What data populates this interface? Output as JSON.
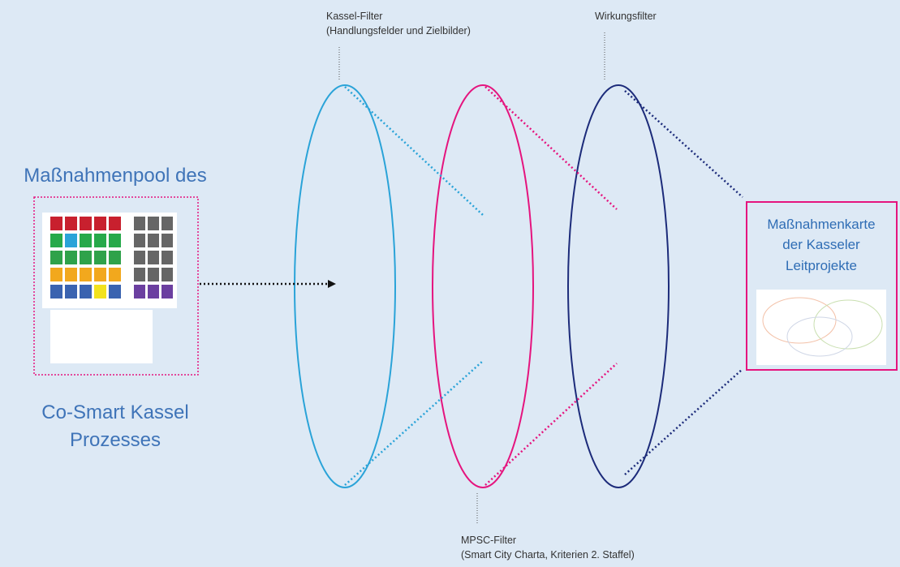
{
  "filters": [
    {
      "label_lines": [
        "Kassel-Filter",
        "(Handlungsfelder und Zielbilder)"
      ]
    },
    {
      "label_lines": [
        "MPSC-Filter",
        "(Smart City Charta, Kriterien 2. Staffel)"
      ]
    },
    {
      "label_lines": [
        "Wirkungsfilter"
      ]
    }
  ],
  "pool": {
    "title_top": "Maßnahmenpool des",
    "title_bottom_lines": [
      "Co-Smart Kassel",
      "Prozesses"
    ]
  },
  "result": {
    "title_lines": [
      "Maßnahmenkarte",
      "der Kasseler",
      "Leitprojekte"
    ]
  }
}
